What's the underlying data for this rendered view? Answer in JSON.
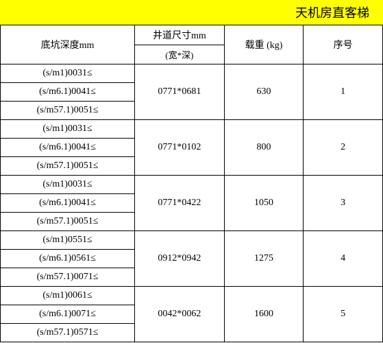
{
  "title": "天机房直客梯",
  "headers": {
    "depth": "底坑深度mm",
    "shaft_top": "井道尺寸mm",
    "shaft_sub": "(宽*深)",
    "load": "载重 (kg)",
    "seq": "序号"
  },
  "rows": [
    {
      "seq": "1",
      "load": "630",
      "shaft": "0771*0681",
      "depths": [
        "(s/m1)0031≤",
        "(s/m6.1)0041≤",
        "(s/m57.1)0051≤"
      ]
    },
    {
      "seq": "2",
      "load": "800",
      "shaft": "0771*0102",
      "depths": [
        "(s/m1)0031≤",
        "(s/m6.1)0041≤",
        "(s/m57.1)0051≤"
      ]
    },
    {
      "seq": "3",
      "load": "1050",
      "shaft": "0771*0422",
      "depths": [
        "(s/m1)0031≤",
        "(s/m6.1)0041≤",
        "(s/m57.1)0051≤"
      ]
    },
    {
      "seq": "4",
      "load": "1275",
      "shaft": "0912*0942",
      "depths": [
        "(s/m1)0551≤",
        "(s/m6.1)0561≤",
        "(s/m57.1)0071≤"
      ]
    },
    {
      "seq": "5",
      "load": "1600",
      "shaft": "0042*0062",
      "depths": [
        "(s/m1)0061≤",
        "(s/m6.1)0071≤",
        "(s/m57.1)0571≤"
      ]
    }
  ]
}
